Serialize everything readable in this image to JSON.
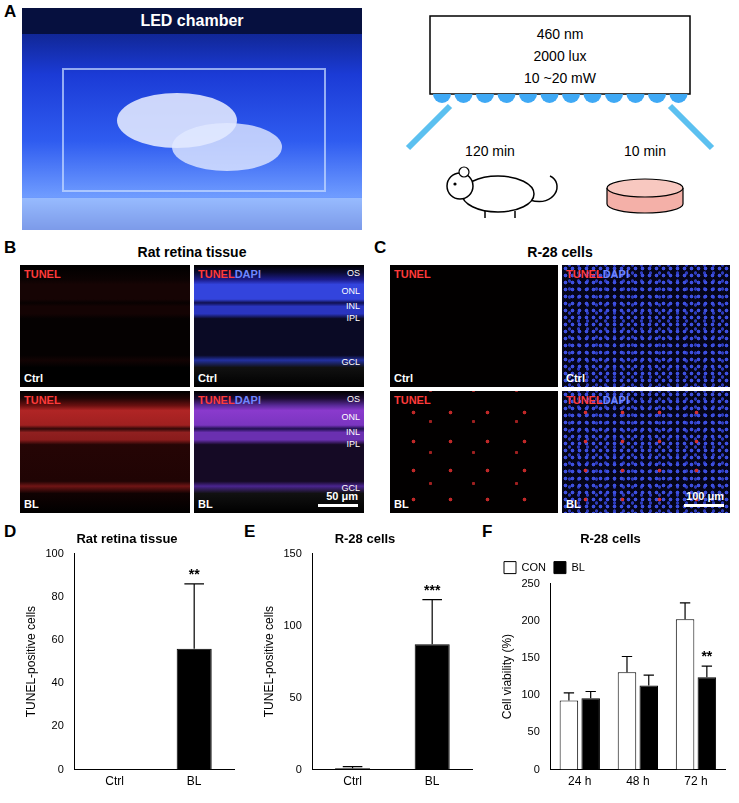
{
  "panel_a": {
    "letter": "A",
    "photo_label": "LED chamber",
    "light": [
      "460 nm",
      "2000 lux",
      "10 ~20 mW"
    ],
    "exposure_times": [
      "120 min",
      "10 min"
    ]
  },
  "panel_b": {
    "letter": "B",
    "title": "Rat retina tissue",
    "channels": [
      "TUNEL",
      "DAPI"
    ],
    "conditions": [
      "Ctrl",
      "BL"
    ],
    "layers": [
      "OS",
      "ONL",
      "INL",
      "IPL",
      "GCL"
    ],
    "scale_bar": "50 μm"
  },
  "panel_c": {
    "letter": "C",
    "title": "R-28 cells",
    "channels": [
      "TUNEL",
      "DAPI"
    ],
    "conditions": [
      "Ctrl",
      "BL"
    ],
    "scale_bar": "100 μm"
  },
  "chart_data": [
    {
      "panel": "D",
      "type": "bar",
      "title": "Rat retina tissue",
      "y_label": "TUNEL-positive cells",
      "categories": [
        "Ctrl",
        "BL"
      ],
      "values": [
        0,
        56
      ],
      "errors": [
        0,
        30
      ],
      "color": "#000000",
      "ylim": [
        0,
        100
      ],
      "yticks": [
        0,
        20,
        40,
        60,
        80,
        100
      ],
      "grid": false,
      "annotations": [
        {
          "category": "BL",
          "text": "**"
        }
      ]
    },
    {
      "panel": "E",
      "type": "bar",
      "title": "R-28 cells",
      "y_label": "TUNEL-positive cells",
      "categories": [
        "Ctrl",
        "BL"
      ],
      "values": [
        1,
        87
      ],
      "errors": [
        1,
        31
      ],
      "color": "#000000",
      "ylim": [
        0,
        150
      ],
      "yticks": [
        0,
        50,
        100,
        150
      ],
      "grid": false,
      "annotations": [
        {
          "category": "BL",
          "text": "***"
        }
      ]
    },
    {
      "panel": "F",
      "type": "bar",
      "title": "R-28 cells",
      "y_label": "Cell viability (%)",
      "categories": [
        "24 h",
        "48 h",
        "72 h"
      ],
      "series": [
        {
          "name": "CON",
          "color": "#ffffff",
          "values": [
            93,
            131,
            202
          ],
          "errors": [
            10,
            21,
            22
          ]
        },
        {
          "name": "BL",
          "color": "#000000",
          "values": [
            96,
            113,
            124
          ],
          "errors": [
            9,
            14,
            15
          ]
        }
      ],
      "ylim": [
        0,
        250
      ],
      "yticks": [
        0,
        50,
        100,
        150,
        200,
        250
      ],
      "grid": false,
      "legend": "top-left",
      "annotations": [
        {
          "category": "72 h",
          "series": "BL",
          "text": "**"
        }
      ]
    }
  ]
}
